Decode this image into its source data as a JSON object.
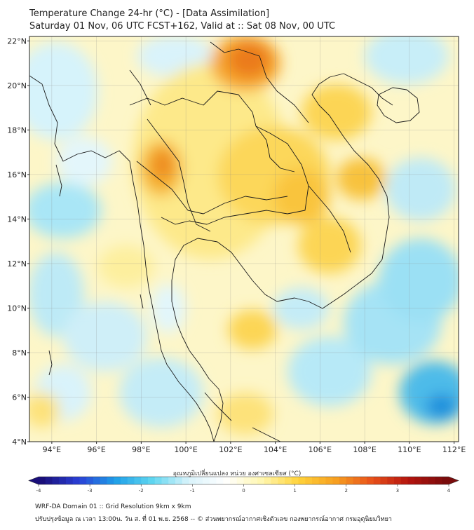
{
  "title": {
    "line1": "Temperature Change 24-hr (°C) - [Data Assimilation]",
    "line2": "Saturday 01 Nov, 06 UTC FCST+162, Valid at :: Sat 08 Nov, 00 UTC"
  },
  "map": {
    "lat_ticks": [
      "22°N",
      "20°N",
      "18°N",
      "16°N",
      "14°N",
      "12°N",
      "10°N",
      "8°N",
      "6°N",
      "4°N"
    ],
    "lon_ticks": [
      "94°E",
      "96°E",
      "98°E",
      "100°E",
      "102°E",
      "104°E",
      "106°E",
      "108°E",
      "110°E",
      "112°E"
    ],
    "lat_range": [
      4,
      22.2
    ],
    "lon_range": [
      93,
      112.2
    ],
    "color_scheme": "blue-white-yellow-red"
  },
  "colorbar": {
    "title": "อุณหภูมิเปลี่ยนแปลง หน่วย องศาเซลเซียส (°C)",
    "ticks": [
      "-4",
      "-3",
      "-2",
      "-1",
      "0",
      "1",
      "2",
      "3",
      "4"
    ],
    "range": [
      -4,
      4
    ],
    "colors": [
      "#1a0f7a",
      "#2a3fd6",
      "#1f9fe8",
      "#5fd6f0",
      "#d9f3fb",
      "#ffffff",
      "#fff7b0",
      "#ffd23a",
      "#f7a020",
      "#e8501a",
      "#b4140e",
      "#7a0c0c"
    ]
  },
  "footer": {
    "line1": "WRF-DA Domain 01 :: Grid Resolution 9km x 9km",
    "line2": "ปรับปรุงข้อมูล ณ เวลา 13:00น. วัน ส. ที่ 01 พ.ย. 2568 -- © ส่วนพยากรณ์อากาศเชิงตัวเลข กองพยากรณ์อากาศ กรมอุตุนิยมวิทยา"
  }
}
